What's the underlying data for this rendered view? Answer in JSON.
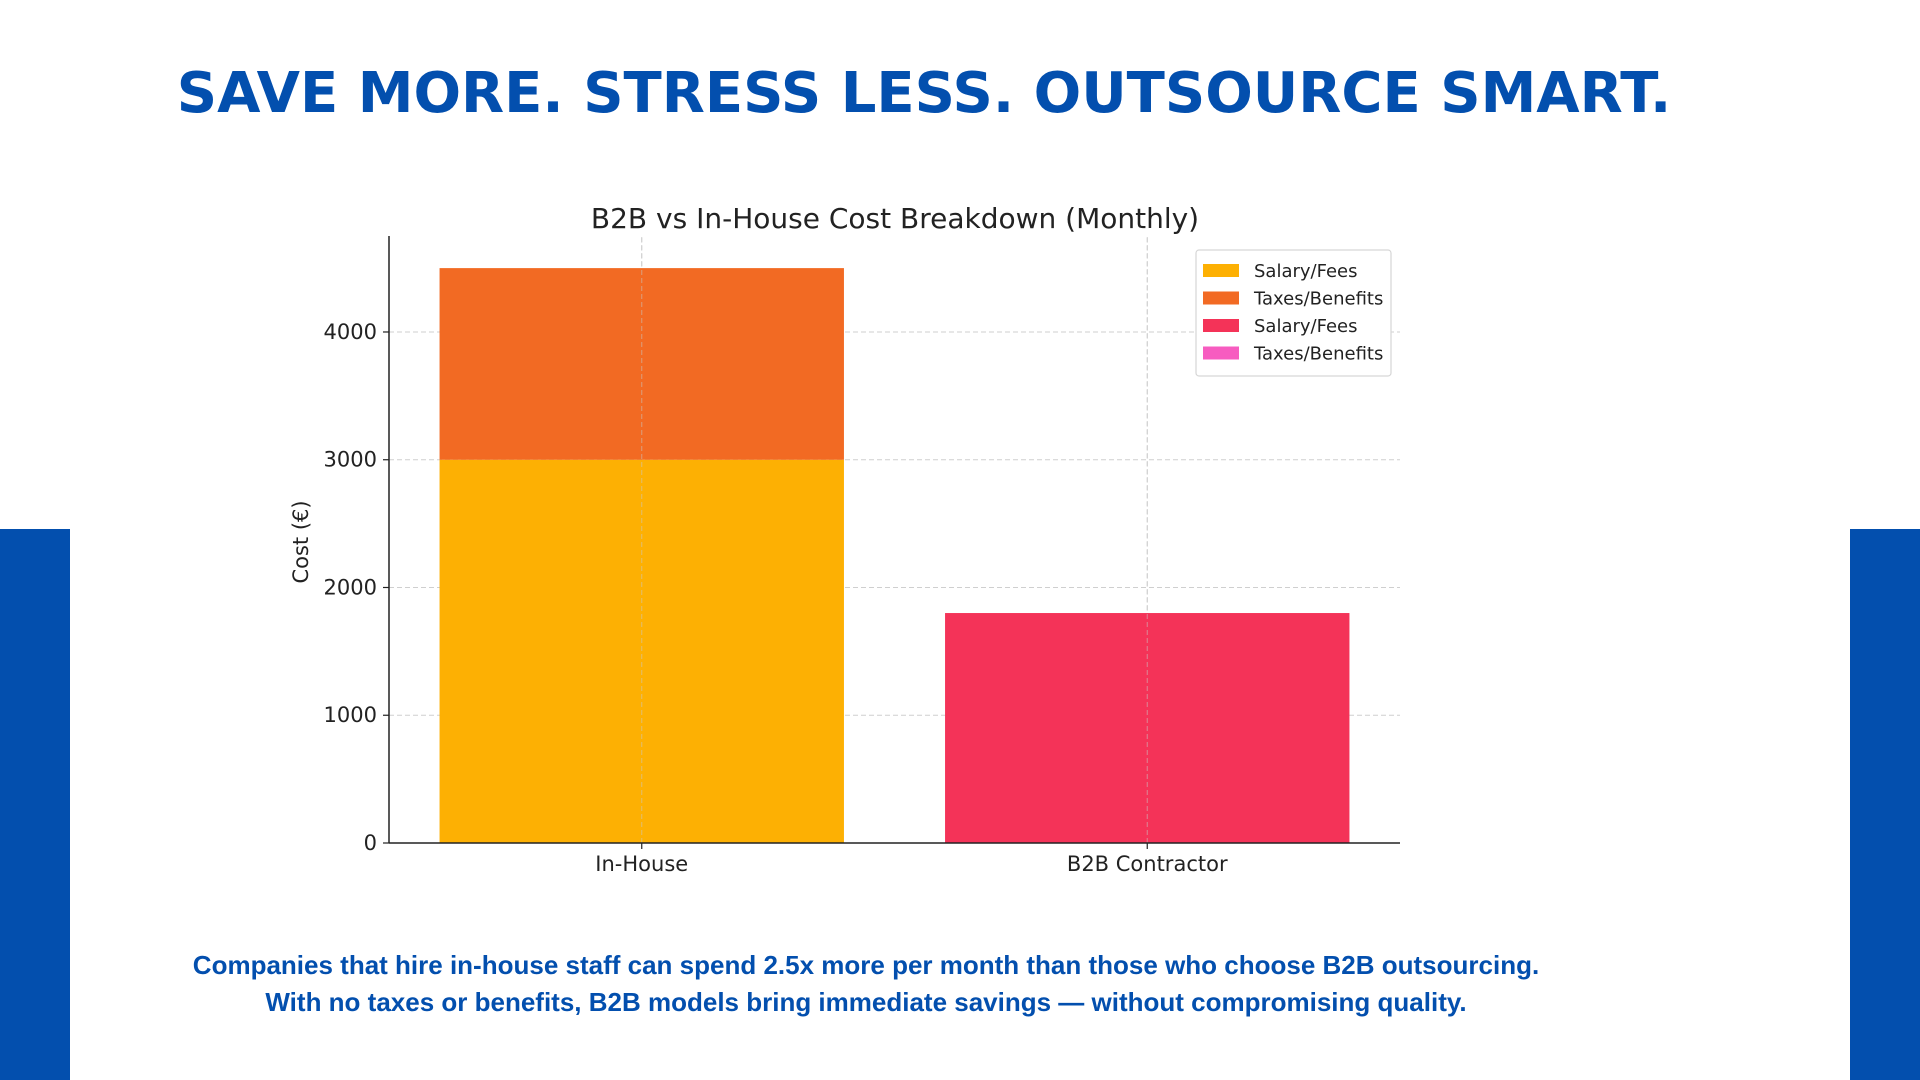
{
  "headline": "SAVE MORE. STRESS LESS. OUTSOURCE SMART.",
  "caption": {
    "line1": "Companies that hire in-house staff can spend 2.5x more per month than those who choose B2B outsourcing.",
    "line2": "With no taxes or benefits, B2B models bring immediate savings — without compromising quality."
  },
  "colors": {
    "brand_blue": "#034fae"
  },
  "chart_data": {
    "type": "bar",
    "stacked": true,
    "title": "B2B vs In-House Cost Breakdown (Monthly)",
    "xlabel": "",
    "ylabel": "Cost (€)",
    "ylim": [
      0,
      4720
    ],
    "yticks": [
      0,
      1000,
      2000,
      3000,
      4000
    ],
    "grid": true,
    "legend_position": "top-right",
    "categories": [
      "In-House",
      "B2B Contractor"
    ],
    "series": [
      {
        "name": "Salary/Fees",
        "color": "#fdb003",
        "values": [
          3000,
          0
        ]
      },
      {
        "name": "Taxes/Benefits",
        "color": "#f26a23",
        "values": [
          1500,
          0
        ]
      },
      {
        "name": "Salary/Fees",
        "color": "#f43358",
        "values": [
          0,
          1800
        ]
      },
      {
        "name": "Taxes/Benefits",
        "color": "#f75cc0",
        "values": [
          0,
          0
        ]
      }
    ]
  }
}
